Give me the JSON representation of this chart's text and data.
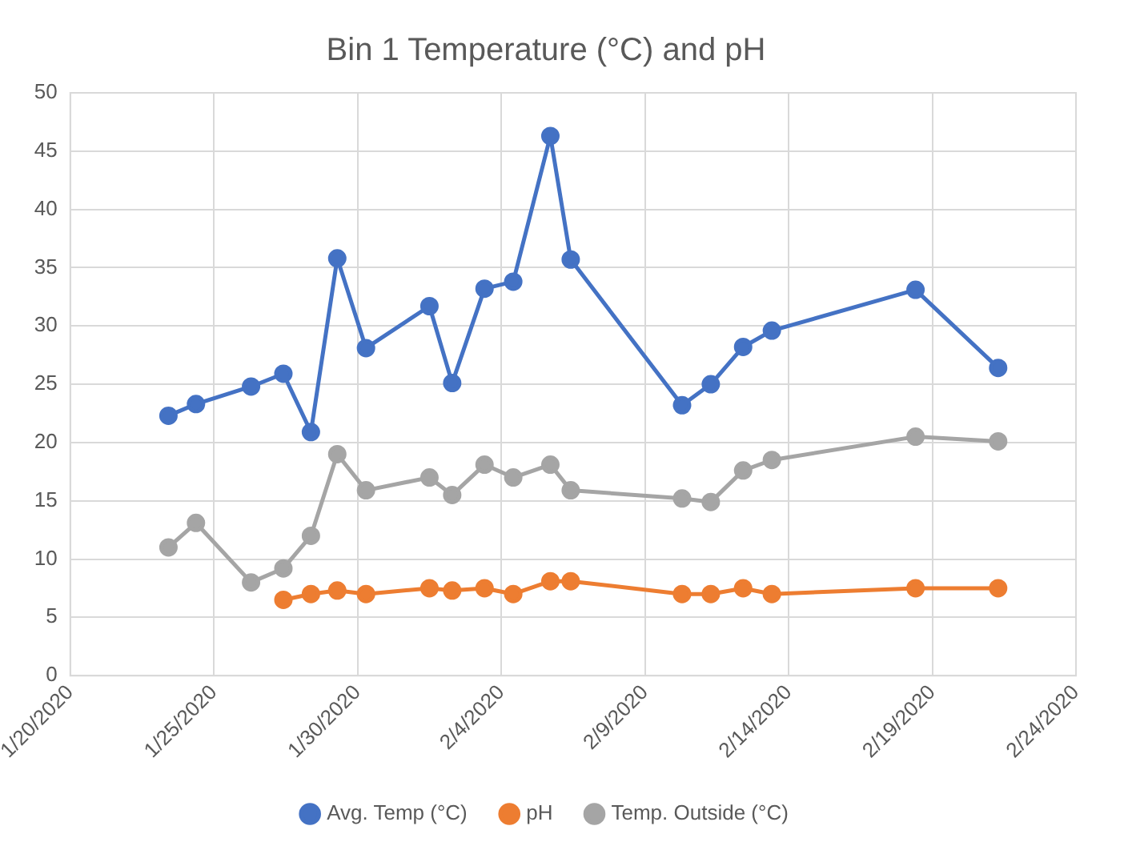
{
  "chart_data": {
    "type": "line",
    "title": "Bin 1 Temperature (°C) and pH",
    "x": [
      "2020-01-23T10:00",
      "2020-01-24T09:00",
      "2020-01-26T07:00",
      "2020-01-27T10:00",
      "2020-01-28T09:00",
      "2020-01-29T07:00",
      "2020-01-30T07:00",
      "2020-02-01T12:00",
      "2020-02-02T07:00",
      "2020-02-03T10:00",
      "2020-02-04T10:00",
      "2020-02-05T17:00",
      "2020-02-06T10:00",
      "2020-02-10T07:00",
      "2020-02-11T07:00",
      "2020-02-12T10:00",
      "2020-02-13T10:00",
      "2020-02-18T10:00",
      "2020-02-21T07:00"
    ],
    "series": [
      {
        "name": "Avg. Temp (°C)",
        "color": "#4472c4",
        "values": [
          22.3,
          23.3,
          24.8,
          25.9,
          20.9,
          35.8,
          28.1,
          31.7,
          25.1,
          33.2,
          33.8,
          46.3,
          35.7,
          23.2,
          25.0,
          28.2,
          29.6,
          33.1,
          26.4
        ]
      },
      {
        "name": "pH",
        "color": "#ed7d31",
        "values": [
          null,
          null,
          null,
          6.5,
          7.0,
          7.3,
          7.0,
          7.5,
          7.3,
          7.5,
          7.0,
          8.1,
          8.1,
          7.0,
          7.0,
          7.5,
          7.0,
          7.5,
          7.5
        ]
      },
      {
        "name": "Temp. Outside (°C)",
        "color": "#a5a5a5",
        "values": [
          11.0,
          13.1,
          8.0,
          9.2,
          12.0,
          19.0,
          15.9,
          17.0,
          15.5,
          18.1,
          17.0,
          18.1,
          15.9,
          15.2,
          14.9,
          17.6,
          18.5,
          20.5,
          20.1
        ]
      }
    ],
    "xlim": [
      "2020-01-20",
      "2020-02-24"
    ],
    "xticks": [
      {
        "value": "2020-01-20",
        "label": "1/20/2020"
      },
      {
        "value": "2020-01-25",
        "label": "1/25/2020"
      },
      {
        "value": "2020-01-30",
        "label": "1/30/2020"
      },
      {
        "value": "2020-02-04",
        "label": "2/4/2020"
      },
      {
        "value": "2020-02-09",
        "label": "2/9/2020"
      },
      {
        "value": "2020-02-14",
        "label": "2/14/2020"
      },
      {
        "value": "2020-02-19",
        "label": "2/19/2020"
      },
      {
        "value": "2020-02-24",
        "label": "2/24/2020"
      }
    ],
    "ylim": [
      0,
      50
    ],
    "yticks": [
      0,
      5,
      10,
      15,
      20,
      25,
      30,
      35,
      40,
      45,
      50
    ],
    "grid": true,
    "legend": "bottom",
    "marker": "circle",
    "line_style": "solid"
  }
}
